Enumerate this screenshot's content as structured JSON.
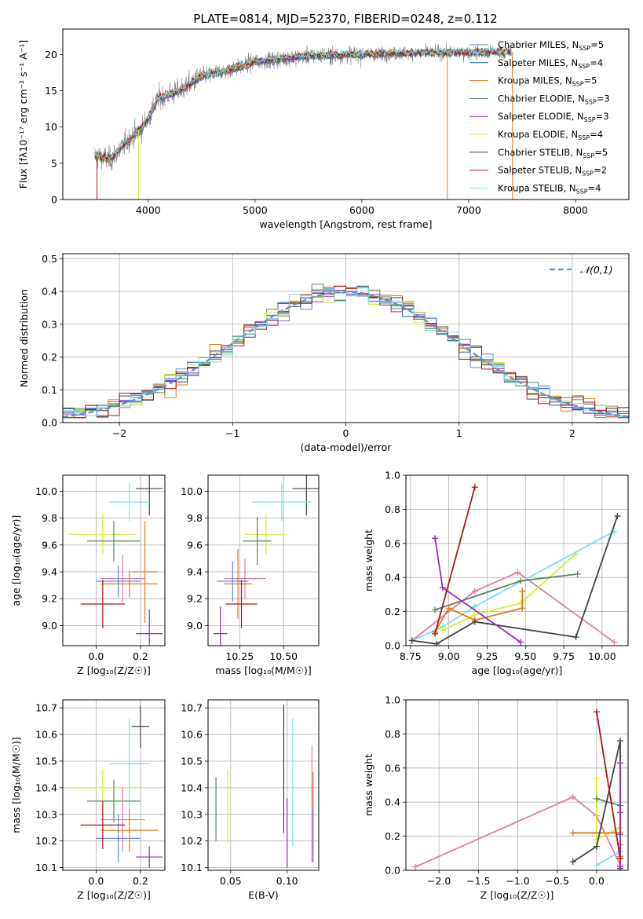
{
  "figure_title": "PLATE=0814, MJD=52370, FIBERID=0248, z=0.112",
  "colors": {
    "chabrier_miles": "#5a88d8",
    "salpeter_miles": "#1f5fa8",
    "kroupa_miles": "#e07b20",
    "chabrier_elodie": "#4f8a5a",
    "salpeter_elodie": "#9a2bbd",
    "kroupa_elodie": "#d4ec3a",
    "chabrier_stelib": "#444444",
    "salpeter_stelib": "#b01515",
    "kroupa_stelib": "#7fdde6",
    "gaussian": "#5b8fd9",
    "pink": "#e07bb0"
  },
  "chart_data": [
    {
      "id": "spectrum",
      "type": "line",
      "xlabel": "wavelength [Angstrom, rest frame]",
      "ylabel": "Flux [fλ10⁻¹⁷ erg cm⁻² s⁻¹ A⁻¹]",
      "xlim": [
        3200,
        8500
      ],
      "ylim": [
        0,
        23.5
      ],
      "xticks": [
        4000,
        5000,
        6000,
        7000,
        8000
      ],
      "yticks": [
        0,
        5,
        10,
        15,
        20
      ],
      "data_range_x": [
        3500,
        7400
      ],
      "continuum": [
        [
          3500,
          6
        ],
        [
          3650,
          5.5
        ],
        [
          3800,
          8
        ],
        [
          3950,
          10
        ],
        [
          4100,
          14
        ],
        [
          4300,
          15
        ],
        [
          4500,
          17
        ],
        [
          4800,
          18
        ],
        [
          5000,
          19
        ],
        [
          5500,
          19.8
        ],
        [
          6000,
          20
        ],
        [
          6500,
          20.2
        ],
        [
          7000,
          20.3
        ],
        [
          7400,
          20.3
        ]
      ],
      "legend": [
        {
          "label": "Chabrier MILES, N",
          "sub": "SSP",
          "suffix": "=5",
          "color": "#5a88d8"
        },
        {
          "label": "Salpeter MILES, N",
          "sub": "SSP",
          "suffix": "=4",
          "color": "#1f5fa8"
        },
        {
          "label": "Kroupa MILES, N",
          "sub": "SSP",
          "suffix": "=5",
          "color": "#e07b20"
        },
        {
          "label": "Chabrier ELODIE, N",
          "sub": "SSP",
          "suffix": "=3",
          "color": "#4f8a5a"
        },
        {
          "label": "Salpeter ELODIE, N",
          "sub": "SSP",
          "suffix": "=3",
          "color": "#9a2bbd"
        },
        {
          "label": "Kroupa ELODIE, N",
          "sub": "SSP",
          "suffix": "=4",
          "color": "#d4ec3a"
        },
        {
          "label": "Chabrier STELIB, N",
          "sub": "SSP",
          "suffix": "=5",
          "color": "#444444"
        },
        {
          "label": "Salpeter STELIB, N",
          "sub": "SSP",
          "suffix": "=2",
          "color": "#b01515"
        },
        {
          "label": "Kroupa STELIB, N",
          "sub": "SSP",
          "suffix": "=4",
          "color": "#7fdde6"
        }
      ]
    },
    {
      "id": "residuals",
      "type": "line",
      "xlabel": "(data-model)/error",
      "ylabel": "Normed distribution",
      "xlim": [
        -2.5,
        2.5
      ],
      "ylim": [
        0,
        0.515
      ],
      "xticks": [
        -2,
        -1,
        0,
        1,
        2
      ],
      "yticks": [
        0.0,
        0.1,
        0.2,
        0.3,
        0.4,
        0.5
      ],
      "legend": "𝒩(0,1)",
      "legend_position": "top-right",
      "bin_width": 0.1
    },
    {
      "id": "age_vs_Z",
      "type": "scatter",
      "xlabel": "Z [log₁₀(Z/Z☉)]",
      "ylabel": "age  [log₁₀(age/yr)]",
      "xlim": [
        -0.15,
        0.31
      ],
      "ylim": [
        8.85,
        10.12
      ],
      "xticks": [
        0.0,
        0.2
      ],
      "yticks": [
        9.0,
        9.2,
        9.4,
        9.6,
        9.8,
        10.0
      ],
      "points": [
        {
          "x": 0.24,
          "xe": 0.06,
          "y": 10.02,
          "ye": 0.2,
          "color": "#444444"
        },
        {
          "x": 0.15,
          "xe": 0.09,
          "y": 9.92,
          "ye": 0.14,
          "color": "#7fdde6"
        },
        {
          "x": 0.03,
          "xe": 0.15,
          "y": 9.68,
          "ye": 0.15,
          "color": "#d4ec3a"
        },
        {
          "x": 0.08,
          "xe": 0.12,
          "y": 9.63,
          "ye": 0.15,
          "color": "#4f8a5a"
        },
        {
          "x": 0.12,
          "xe": 0.1,
          "y": 9.35,
          "ye": 0.18,
          "color": "#e07bb0"
        },
        {
          "x": 0.1,
          "xe": 0.1,
          "y": 9.33,
          "ye": 0.12,
          "color": "#5a88d8"
        },
        {
          "x": 0.22,
          "xe": 0.06,
          "y": 9.4,
          "ye": 0.38,
          "color": "#e07b20"
        },
        {
          "x": 0.15,
          "xe": 0.13,
          "y": 9.31,
          "ye": 0.1,
          "color": "#e07b20"
        },
        {
          "x": 0.03,
          "xe": 0.1,
          "y": 9.16,
          "ye": 0.18,
          "color": "#b01515"
        },
        {
          "x": 0.24,
          "xe": 0.06,
          "y": 8.94,
          "ye": 0.18,
          "color": "#9a2bbd"
        }
      ]
    },
    {
      "id": "age_vs_mass",
      "type": "scatter",
      "xlabel": "mass [log₁₀(M/M☉)]",
      "ylabel": "",
      "xlim": [
        10.07,
        10.7
      ],
      "ylim": [
        8.85,
        10.12
      ],
      "xticks": [
        10.25,
        10.5
      ],
      "yticks": [
        9.0,
        9.2,
        9.4,
        9.6,
        9.8,
        10.0
      ],
      "points": [
        {
          "x": 10.63,
          "xe": 0.08,
          "y": 10.02,
          "ye": 0.2,
          "color": "#444444"
        },
        {
          "x": 10.49,
          "xe": 0.17,
          "y": 9.92,
          "ye": 0.14,
          "color": "#7fdde6"
        },
        {
          "x": 10.4,
          "xe": 0.12,
          "y": 9.68,
          "ye": 0.15,
          "color": "#d4ec3a"
        },
        {
          "x": 10.35,
          "xe": 0.08,
          "y": 9.63,
          "ye": 0.18,
          "color": "#4f8a5a"
        },
        {
          "x": 10.28,
          "xe": 0.12,
          "y": 9.35,
          "ye": 0.15,
          "color": "#e07bb0"
        },
        {
          "x": 10.21,
          "xe": 0.09,
          "y": 9.33,
          "ye": 0.15,
          "color": "#5a88d8"
        },
        {
          "x": 10.24,
          "xe": 0.08,
          "y": 9.31,
          "ye": 0.26,
          "color": "#e07b20"
        },
        {
          "x": 10.26,
          "xe": 0.09,
          "y": 9.16,
          "ye": 0.18,
          "color": "#b01515"
        },
        {
          "x": 10.14,
          "xe": 0.04,
          "y": 8.94,
          "ye": 0.2,
          "color": "#9a2bbd"
        }
      ]
    },
    {
      "id": "weight_vs_age",
      "type": "line",
      "xlabel": "age  [log₁₀(age/yr)]",
      "ylabel": "mass weight",
      "xlim": [
        8.72,
        10.17
      ],
      "ylim": [
        0,
        1.0
      ],
      "xticks": [
        8.75,
        9.0,
        9.25,
        9.5,
        9.75,
        10.0
      ],
      "yticks": [
        0.0,
        0.2,
        0.4,
        0.6,
        0.8,
        1.0
      ],
      "series": [
        {
          "color": "#e07bb0",
          "x": [
            8.76,
            9.17,
            9.45,
            10.08
          ],
          "y": [
            0.03,
            0.32,
            0.43,
            0.02
          ]
        },
        {
          "color": "#7fdde6",
          "x": [
            8.76,
            8.96,
            9.17,
            10.08
          ],
          "y": [
            0.03,
            0.11,
            0.23,
            0.67
          ]
        },
        {
          "color": "#d4ec3a",
          "x": [
            8.96,
            9.17,
            9.47,
            9.83
          ],
          "y": [
            0.09,
            0.18,
            0.25,
            0.54
          ]
        },
        {
          "color": "#4f8a5a",
          "x": [
            8.91,
            9.47,
            9.84
          ],
          "y": [
            0.21,
            0.38,
            0.42
          ]
        },
        {
          "color": "#e07b20",
          "x": [
            8.91,
            9.0,
            9.17,
            9.48,
            9.48
          ],
          "y": [
            0.08,
            0.22,
            0.15,
            0.22,
            0.32
          ]
        },
        {
          "color": "#444444",
          "x": [
            8.76,
            8.92,
            9.17,
            9.83,
            10.1
          ],
          "y": [
            0.03,
            0.01,
            0.14,
            0.05,
            0.76
          ]
        },
        {
          "color": "#9a2bbd",
          "x": [
            8.91,
            8.96,
            9.47
          ],
          "y": [
            0.63,
            0.34,
            0.02
          ]
        },
        {
          "color": "#b01515",
          "x": [
            8.91,
            9.17
          ],
          "y": [
            0.07,
            0.93
          ]
        }
      ]
    },
    {
      "id": "mass_vs_Z",
      "type": "scatter",
      "xlabel": "Z [log₁₀(Z/Z☉)]",
      "ylabel": "mass [log₁₀(M/M☉)]",
      "xlim": [
        -0.15,
        0.31
      ],
      "ylim": [
        10.09,
        10.73
      ],
      "xticks": [
        0.0,
        0.2
      ],
      "yticks": [
        10.1,
        10.2,
        10.3,
        10.4,
        10.5,
        10.6,
        10.7
      ],
      "points": [
        {
          "x": 0.2,
          "xe": 0.04,
          "y": 10.63,
          "ye": 0.08,
          "color": "#444444"
        },
        {
          "x": 0.15,
          "xe": 0.09,
          "y": 10.49,
          "ye": 0.17,
          "color": "#7fdde6"
        },
        {
          "x": 0.03,
          "xe": 0.15,
          "y": 10.4,
          "ye": 0.07,
          "color": "#d4ec3a"
        },
        {
          "x": 0.08,
          "xe": 0.12,
          "y": 10.35,
          "ye": 0.08,
          "color": "#4f8a5a"
        },
        {
          "x": 0.12,
          "xe": 0.1,
          "y": 10.28,
          "ye": 0.12,
          "color": "#e07bb0"
        },
        {
          "x": 0.1,
          "xe": 0.1,
          "y": 10.21,
          "ye": 0.09,
          "color": "#5a88d8"
        },
        {
          "x": 0.15,
          "xe": 0.13,
          "y": 10.24,
          "ye": 0.08,
          "color": "#e07b20"
        },
        {
          "x": 0.03,
          "xe": 0.1,
          "y": 10.26,
          "ye": 0.09,
          "color": "#b01515"
        },
        {
          "x": 0.24,
          "xe": 0.06,
          "y": 10.14,
          "ye": 0.04,
          "color": "#9a2bbd"
        }
      ]
    },
    {
      "id": "mass_vs_EBV",
      "type": "scatter",
      "xlabel": "E(B-V)",
      "ylabel": "",
      "xlim": [
        0.03,
        0.128
      ],
      "ylim": [
        10.09,
        10.73
      ],
      "xticks": [
        0.05,
        0.1
      ],
      "yticks": [
        10.1,
        10.2,
        10.3,
        10.4,
        10.5,
        10.6,
        10.7
      ],
      "points": [
        {
          "x": 0.097,
          "y": 10.47,
          "ye": 0.24,
          "color": "#444444"
        },
        {
          "x": 0.105,
          "y": 10.42,
          "ye": 0.24,
          "color": "#7fdde6"
        },
        {
          "x": 0.0475,
          "y": 10.33,
          "ye": 0.14,
          "color": "#d4ec3a"
        },
        {
          "x": 0.037,
          "y": 10.32,
          "ye": 0.12,
          "color": "#4f8a5a"
        },
        {
          "x": 0.122,
          "y": 10.34,
          "ye": 0.22,
          "color": "#e07bb0"
        },
        {
          "x": 0.1,
          "y": 10.23,
          "ye": 0.13,
          "color": "#9a2bbd"
        },
        {
          "x": 0.123,
          "y": 10.3,
          "ye": 0.16,
          "color": "#e07b20"
        },
        {
          "x": 0.123,
          "y": 10.22,
          "ye": 0.1,
          "color": "#5a88d8"
        }
      ]
    },
    {
      "id": "weight_vs_Z",
      "type": "line",
      "xlabel": "Z [log₁₀(Z/Z☉)]",
      "ylabel": "mass weight",
      "xlim": [
        -2.42,
        0.4
      ],
      "ylim": [
        0,
        1.0
      ],
      "xticks": [
        -2.0,
        -1.5,
        -1.0,
        -0.5,
        0.0
      ],
      "yticks": [
        0.0,
        0.2,
        0.4,
        0.6,
        0.8,
        1.0
      ],
      "series": [
        {
          "color": "#e07bb0",
          "x": [
            -2.3,
            -0.3,
            0.0,
            0.3
          ],
          "y": [
            0.02,
            0.43,
            0.32,
            0.03
          ]
        },
        {
          "color": "#7fdde6",
          "x": [
            0.0,
            0.3,
            0.3
          ],
          "y": [
            0.03,
            0.11,
            0.67
          ]
        },
        {
          "color": "#d4ec3a",
          "x": [
            0.0,
            0.0,
            0.3,
            0.3
          ],
          "y": [
            0.54,
            0.18,
            0.25,
            0.09
          ]
        },
        {
          "color": "#4f8a5a",
          "x": [
            0.0,
            0.3,
            0.3
          ],
          "y": [
            0.42,
            0.38,
            0.21
          ]
        },
        {
          "color": "#e07b20",
          "x": [
            -0.3,
            0.3,
            0.3,
            0.3
          ],
          "y": [
            0.22,
            0.22,
            0.15,
            0.08
          ]
        },
        {
          "color": "#444444",
          "x": [
            -0.3,
            0.0,
            0.3,
            0.3
          ],
          "y": [
            0.05,
            0.14,
            0.76,
            0.01
          ]
        },
        {
          "color": "#9a2bbd",
          "x": [
            0.3,
            0.3,
            0.3
          ],
          "y": [
            0.63,
            0.34,
            0.02
          ]
        },
        {
          "color": "#b01515",
          "x": [
            0.0,
            0.3
          ],
          "y": [
            0.93,
            0.07
          ]
        }
      ]
    }
  ]
}
